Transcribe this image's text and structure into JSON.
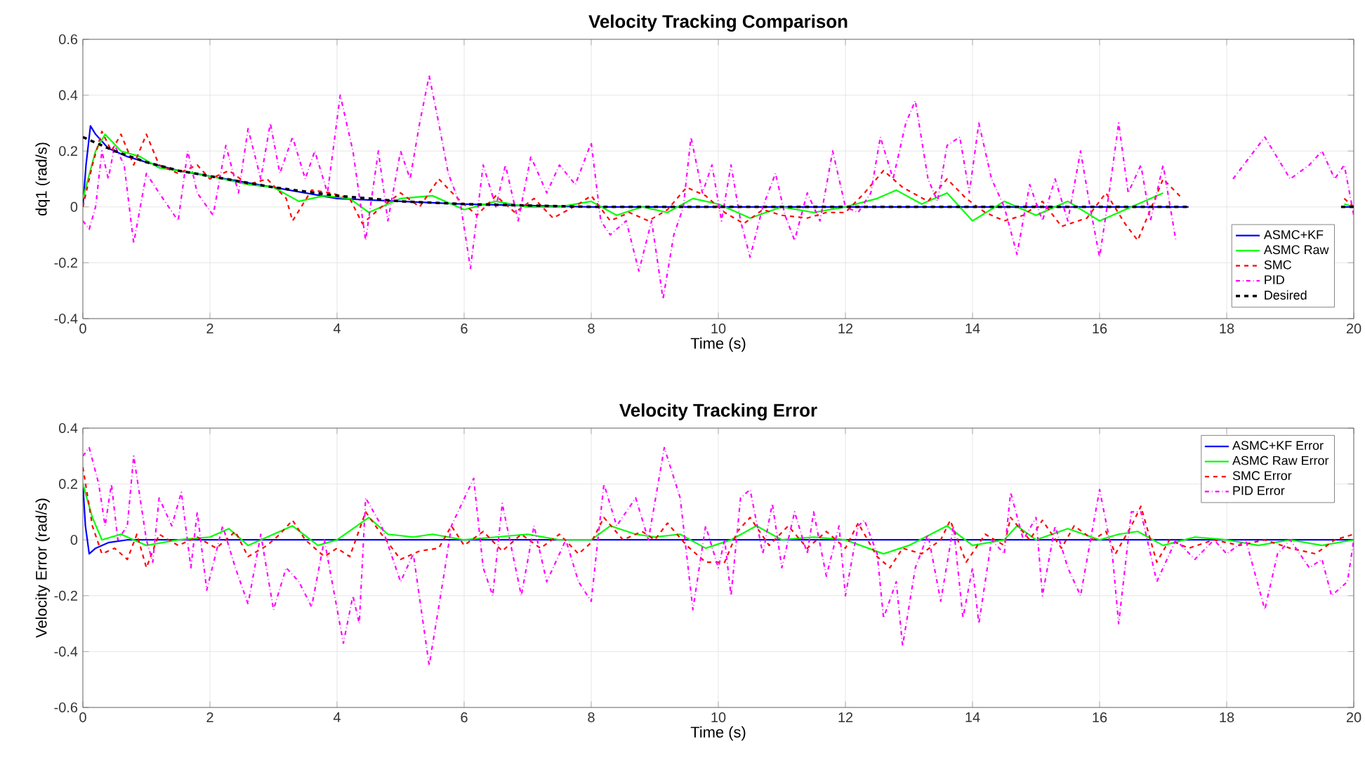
{
  "chart_data": [
    {
      "type": "line",
      "title": "Velocity Tracking Comparison",
      "xlabel": "Time (s)",
      "ylabel": "dq1 (rad/s)",
      "xlim": [
        0,
        20
      ],
      "ylim": [
        -0.4,
        0.6
      ],
      "xticks": [
        0,
        2,
        4,
        6,
        8,
        10,
        12,
        14,
        16,
        18,
        20
      ],
      "yticks": [
        -0.4,
        -0.2,
        0,
        0.2,
        0.4,
        0.6
      ],
      "grid": true,
      "legend": "bottom right",
      "series": [
        {
          "name": "ASMC+KF",
          "color": "#0000ff",
          "line_style": "solid",
          "x": [
            0,
            0.05,
            0.12,
            0.2,
            0.4,
            0.7,
            1.0,
            1.5,
            2.0,
            3.0,
            4.0,
            5.0,
            6.0,
            8.0,
            17.4,
            18.5,
            19.8,
            20.0
          ],
          "values": [
            0.0,
            0.15,
            0.29,
            0.26,
            0.21,
            0.18,
            0.16,
            0.13,
            0.11,
            0.07,
            0.03,
            0.02,
            0.01,
            0.0,
            0.0,
            null,
            0.0,
            0.0
          ]
        },
        {
          "name": "ASMC Raw",
          "color": "#00ff00",
          "line_style": "solid",
          "x": [
            0,
            0.2,
            0.35,
            0.6,
            0.9,
            1.2,
            1.5,
            1.8,
            2.2,
            2.6,
            3.0,
            3.4,
            3.8,
            4.2,
            4.5,
            5.0,
            5.5,
            6.0,
            6.5,
            7.0,
            7.5,
            8.0,
            8.4,
            8.8,
            9.2,
            9.6,
            10.0,
            10.5,
            11.0,
            11.5,
            12.0,
            12.5,
            12.8,
            13.2,
            13.6,
            14.0,
            14.5,
            15.0,
            15.5,
            16.0,
            16.5,
            17.0,
            17.5,
            18.0,
            18.5,
            19.0,
            19.5,
            19.85,
            20.0
          ],
          "values": [
            0.03,
            0.2,
            0.26,
            0.2,
            0.18,
            0.14,
            0.13,
            0.12,
            0.1,
            0.08,
            0.07,
            0.02,
            0.04,
            0.03,
            -0.02,
            0.03,
            0.04,
            -0.01,
            0.02,
            0.0,
            0.0,
            0.02,
            -0.03,
            0.0,
            -0.02,
            0.03,
            0.01,
            -0.04,
            0.0,
            -0.02,
            0.0,
            0.03,
            0.06,
            0.01,
            0.05,
            -0.05,
            0.02,
            -0.03,
            0.02,
            -0.05,
            0.0,
            0.05,
            null,
            null,
            null,
            null,
            null,
            0.01,
            0.0
          ]
        },
        {
          "name": "SMC",
          "color": "#ff0000",
          "line_style": "dashed",
          "x": [
            0,
            0.15,
            0.3,
            0.45,
            0.6,
            0.8,
            1.0,
            1.2,
            1.5,
            1.8,
            2.0,
            2.3,
            2.6,
            2.9,
            3.2,
            3.3,
            3.6,
            3.9,
            4.2,
            4.4,
            4.7,
            5.0,
            5.3,
            5.6,
            5.9,
            6.2,
            6.5,
            6.8,
            7.1,
            7.4,
            7.8,
            8.0,
            8.3,
            8.6,
            8.9,
            9.2,
            9.5,
            9.8,
            10.1,
            10.4,
            10.7,
            11.0,
            11.4,
            11.7,
            12.0,
            12.3,
            12.6,
            12.9,
            13.3,
            13.6,
            13.9,
            14.2,
            14.5,
            14.8,
            15.1,
            15.4,
            15.8,
            16.1,
            16.4,
            16.6,
            17.0,
            17.3,
            17.6,
            18.0,
            18.5,
            19.0,
            19.5,
            19.85,
            20.0
          ],
          "values": [
            0.0,
            0.15,
            0.27,
            0.2,
            0.26,
            0.15,
            0.26,
            0.15,
            0.12,
            0.15,
            0.1,
            0.13,
            0.08,
            0.1,
            0.03,
            -0.05,
            0.06,
            0.05,
            0.03,
            -0.06,
            0.0,
            0.05,
            0.0,
            0.1,
            0.03,
            -0.03,
            0.04,
            -0.02,
            0.03,
            -0.04,
            0.01,
            0.04,
            -0.05,
            -0.02,
            -0.05,
            -0.01,
            0.07,
            0.04,
            -0.02,
            -0.06,
            -0.01,
            -0.03,
            -0.04,
            -0.02,
            -0.02,
            0.05,
            0.13,
            0.07,
            0.02,
            0.1,
            0.03,
            -0.02,
            -0.05,
            -0.03,
            0.02,
            -0.07,
            -0.04,
            0.05,
            -0.06,
            -0.12,
            0.1,
            0.03,
            null,
            null,
            null,
            null,
            null,
            0.03,
            0.0
          ]
        },
        {
          "name": "PID",
          "color": "#ff00ff",
          "line_style": "dashdot",
          "x": [
            0,
            0.1,
            0.2,
            0.3,
            0.4,
            0.5,
            0.65,
            0.8,
            1.0,
            1.2,
            1.35,
            1.5,
            1.65,
            1.8,
            2.05,
            2.25,
            2.45,
            2.6,
            2.8,
            2.95,
            3.1,
            3.3,
            3.5,
            3.65,
            3.85,
            4.05,
            4.25,
            4.45,
            4.65,
            4.8,
            5.0,
            5.15,
            5.3,
            5.45,
            5.6,
            5.75,
            5.95,
            6.1,
            6.3,
            6.5,
            6.65,
            6.85,
            7.05,
            7.3,
            7.5,
            7.75,
            8.0,
            8.15,
            8.3,
            8.55,
            8.75,
            8.95,
            9.13,
            9.3,
            9.45,
            9.57,
            9.75,
            9.9,
            10.05,
            10.2,
            10.35,
            10.5,
            10.7,
            10.9,
            11.05,
            11.2,
            11.4,
            11.6,
            11.8,
            12.0,
            12.2,
            12.4,
            12.55,
            12.75,
            12.95,
            13.1,
            13.3,
            13.45,
            13.6,
            13.8,
            13.95,
            14.1,
            14.3,
            14.5,
            14.7,
            14.9,
            15.1,
            15.3,
            15.5,
            15.7,
            15.85,
            16.0,
            16.15,
            16.3,
            16.45,
            16.65,
            16.8,
            17.0,
            17.2,
            17.5,
            17.8,
            18.1,
            18.6,
            19.0,
            19.3,
            19.5,
            19.7,
            19.85,
            20.0
          ],
          "values": [
            -0.05,
            -0.08,
            0.0,
            0.2,
            0.1,
            0.22,
            0.15,
            -0.13,
            0.12,
            0.05,
            0.0,
            -0.05,
            0.2,
            0.05,
            -0.03,
            0.22,
            0.05,
            0.28,
            0.1,
            0.3,
            0.12,
            0.25,
            0.1,
            0.2,
            0.05,
            0.4,
            0.2,
            -0.12,
            0.2,
            -0.05,
            0.2,
            0.1,
            0.3,
            0.47,
            0.3,
            0.12,
            0.0,
            -0.22,
            0.15,
            0.0,
            0.15,
            -0.05,
            0.18,
            0.05,
            0.15,
            0.08,
            0.23,
            -0.05,
            -0.1,
            -0.05,
            -0.23,
            -0.05,
            -0.33,
            -0.1,
            0.0,
            0.25,
            0.05,
            0.15,
            -0.05,
            0.15,
            -0.05,
            -0.18,
            0.0,
            0.12,
            -0.03,
            -0.12,
            0.05,
            -0.05,
            0.2,
            0.0,
            -0.02,
            0.05,
            0.25,
            0.1,
            0.3,
            0.38,
            0.1,
            0.02,
            0.22,
            0.25,
            0.05,
            0.3,
            0.1,
            0.0,
            -0.17,
            0.08,
            -0.05,
            0.1,
            -0.05,
            0.2,
            0.0,
            -0.18,
            0.05,
            0.3,
            0.05,
            0.15,
            -0.05,
            0.15,
            -0.12,
            null,
            null,
            0.1,
            0.25,
            0.1,
            0.15,
            0.2,
            0.1,
            0.15,
            -0.03
          ]
        },
        {
          "name": "Desired",
          "color": "#000000",
          "line_style": "dashed",
          "x": [
            0,
            0.5,
            1.0,
            1.5,
            2.0,
            3.0,
            4.0,
            5.0,
            6.0,
            8.0,
            17.4,
            18.5,
            19.8,
            20.0
          ],
          "values": [
            0.25,
            0.2,
            0.16,
            0.13,
            0.11,
            0.07,
            0.04,
            0.02,
            0.01,
            0.0,
            0.0,
            null,
            0.0,
            0.0
          ]
        }
      ]
    },
    {
      "type": "line",
      "title": "Velocity Tracking Error",
      "xlabel": "Time (s)",
      "ylabel": "Velocity Error (rad/s)",
      "xlim": [
        0,
        20
      ],
      "ylim": [
        -0.6,
        0.4
      ],
      "xticks": [
        0,
        2,
        4,
        6,
        8,
        10,
        12,
        14,
        16,
        18,
        20
      ],
      "yticks": [
        -0.6,
        -0.4,
        -0.2,
        0,
        0.2,
        0.4
      ],
      "grid": true,
      "legend": "top right",
      "series": [
        {
          "name": "ASMC+KF Error",
          "color": "#0000ff",
          "line_style": "solid",
          "x": [
            0,
            0.04,
            0.1,
            0.2,
            0.4,
            0.7,
            20.0
          ],
          "values": [
            0.2,
            0.05,
            -0.05,
            -0.03,
            -0.01,
            0.0,
            0.0
          ]
        },
        {
          "name": "ASMC Raw Error",
          "color": "#00ff00",
          "line_style": "solid",
          "x": [
            0,
            0.15,
            0.3,
            0.6,
            1.0,
            1.5,
            2.0,
            2.3,
            2.6,
            3.0,
            3.3,
            3.7,
            4.0,
            4.5,
            4.8,
            5.2,
            5.5,
            6.0,
            6.5,
            7.0,
            7.5,
            8.0,
            8.3,
            8.7,
            9.0,
            9.4,
            9.8,
            10.2,
            10.6,
            11.0,
            11.5,
            12.0,
            12.6,
            13.0,
            13.6,
            14.0,
            14.5,
            14.7,
            15.0,
            15.5,
            16.0,
            16.3,
            16.6,
            17.0,
            17.5,
            18.0,
            18.5,
            19.0,
            19.5,
            20.0
          ],
          "values": [
            0.2,
            0.08,
            0.0,
            0.02,
            -0.02,
            0.0,
            0.01,
            0.04,
            -0.02,
            0.02,
            0.05,
            -0.02,
            0.0,
            0.08,
            0.02,
            0.01,
            0.02,
            0.0,
            0.01,
            0.02,
            0.0,
            0.0,
            0.05,
            0.02,
            0.01,
            0.02,
            -0.03,
            0.0,
            0.05,
            0.0,
            0.01,
            0.0,
            -0.05,
            -0.02,
            0.05,
            -0.02,
            0.0,
            0.05,
            0.0,
            0.04,
            0.0,
            0.02,
            0.03,
            -0.02,
            0.01,
            0.0,
            -0.02,
            0.0,
            -0.02,
            0.0
          ]
        },
        {
          "name": "SMC Error",
          "color": "#ff0000",
          "line_style": "dashed",
          "x": [
            0,
            0.15,
            0.3,
            0.5,
            0.7,
            0.85,
            1.0,
            1.2,
            1.5,
            1.8,
            2.1,
            2.4,
            2.6,
            2.9,
            3.1,
            3.3,
            3.5,
            3.8,
            4.0,
            4.2,
            4.45,
            4.7,
            5.0,
            5.3,
            5.6,
            5.8,
            6.0,
            6.3,
            6.6,
            6.9,
            7.2,
            7.5,
            7.8,
            8.0,
            8.2,
            8.5,
            8.8,
            9.0,
            9.2,
            9.5,
            9.8,
            10.1,
            10.3,
            10.5,
            10.8,
            11.1,
            11.4,
            11.7,
            12.0,
            12.2,
            12.5,
            12.7,
            12.9,
            13.2,
            13.5,
            13.65,
            13.9,
            14.2,
            14.5,
            14.6,
            14.9,
            15.1,
            15.4,
            15.6,
            15.9,
            16.1,
            16.25,
            16.5,
            16.65,
            16.9,
            17.1,
            17.4,
            17.8,
            18.2,
            18.6,
            19.0,
            19.4,
            19.7,
            20.0
          ],
          "values": [
            0.26,
            0.05,
            -0.05,
            -0.03,
            -0.07,
            0.02,
            -0.1,
            0.02,
            -0.02,
            0.01,
            -0.03,
            0.03,
            -0.06,
            -0.02,
            0.02,
            0.07,
            0.0,
            -0.06,
            -0.03,
            -0.06,
            0.1,
            0.02,
            -0.07,
            -0.04,
            -0.03,
            0.05,
            -0.02,
            0.03,
            -0.04,
            0.02,
            -0.03,
            0.02,
            -0.05,
            -0.01,
            0.08,
            0.0,
            0.03,
            0.0,
            0.06,
            -0.02,
            -0.08,
            -0.08,
            0.03,
            0.08,
            -0.02,
            0.05,
            -0.03,
            0.03,
            -0.03,
            0.06,
            -0.06,
            -0.1,
            -0.03,
            -0.05,
            0.0,
            0.07,
            -0.08,
            0.02,
            -0.02,
            0.08,
            0.0,
            0.07,
            -0.03,
            0.05,
            0.0,
            0.03,
            -0.05,
            0.05,
            0.12,
            -0.08,
            0.0,
            -0.03,
            0.0,
            -0.02,
            0.0,
            -0.03,
            -0.05,
            0.0,
            0.02
          ]
        },
        {
          "name": "PID Error",
          "color": "#ff00ff",
          "line_style": "dashdot",
          "x": [
            0,
            0.1,
            0.25,
            0.35,
            0.45,
            0.55,
            0.7,
            0.8,
            1.0,
            1.1,
            1.2,
            1.4,
            1.55,
            1.7,
            1.8,
            1.95,
            2.2,
            2.4,
            2.6,
            2.8,
            3.0,
            3.2,
            3.4,
            3.6,
            3.8,
            4.1,
            4.25,
            4.35,
            4.45,
            4.7,
            5.0,
            5.2,
            5.45,
            5.7,
            5.8,
            6.15,
            6.3,
            6.45,
            6.6,
            6.9,
            7.1,
            7.3,
            7.6,
            7.8,
            8.0,
            8.2,
            8.4,
            8.7,
            8.9,
            9.15,
            9.4,
            9.6,
            9.8,
            10.0,
            10.1,
            10.2,
            10.35,
            10.5,
            10.7,
            10.85,
            11.0,
            11.2,
            11.4,
            11.5,
            11.7,
            11.9,
            12.0,
            12.2,
            12.3,
            12.5,
            12.6,
            12.8,
            12.9,
            13.1,
            13.3,
            13.5,
            13.7,
            13.85,
            14.0,
            14.1,
            14.3,
            14.5,
            14.6,
            14.8,
            15.0,
            15.1,
            15.3,
            15.5,
            15.7,
            16.0,
            16.2,
            16.3,
            16.5,
            16.65,
            16.9,
            17.2,
            17.5,
            17.8,
            18.0,
            18.3,
            18.6,
            18.8,
            19.0,
            19.3,
            19.5,
            19.65,
            19.9,
            20.0
          ],
          "values": [
            0.3,
            0.33,
            0.2,
            0.05,
            0.2,
            0.0,
            0.05,
            0.3,
            0.0,
            -0.08,
            0.15,
            0.05,
            0.17,
            -0.1,
            0.1,
            -0.18,
            0.05,
            -0.1,
            -0.23,
            0.02,
            -0.25,
            -0.1,
            -0.15,
            -0.24,
            0.0,
            -0.37,
            -0.2,
            -0.3,
            0.15,
            0.05,
            -0.15,
            -0.05,
            -0.45,
            -0.1,
            0.05,
            0.22,
            -0.1,
            -0.2,
            0.13,
            -0.2,
            0.05,
            -0.15,
            0.0,
            -0.15,
            -0.22,
            0.2,
            0.05,
            0.15,
            0.0,
            0.33,
            0.15,
            -0.25,
            0.05,
            -0.1,
            0.0,
            -0.2,
            0.15,
            0.18,
            -0.05,
            0.13,
            -0.1,
            0.1,
            -0.05,
            0.1,
            -0.13,
            0.05,
            -0.2,
            0.05,
            0.07,
            -0.05,
            -0.28,
            -0.15,
            -0.38,
            -0.1,
            0.02,
            -0.22,
            0.05,
            -0.28,
            -0.1,
            -0.3,
            0.0,
            -0.05,
            0.17,
            0.0,
            0.08,
            -0.2,
            0.05,
            -0.1,
            -0.2,
            0.18,
            -0.05,
            -0.3,
            0.1,
            0.1,
            -0.15,
            0.0,
            -0.07,
            0.0,
            -0.05,
            0.0,
            -0.25,
            -0.05,
            0.0,
            -0.1,
            -0.07,
            -0.2,
            -0.15,
            0.0
          ]
        }
      ]
    }
  ]
}
